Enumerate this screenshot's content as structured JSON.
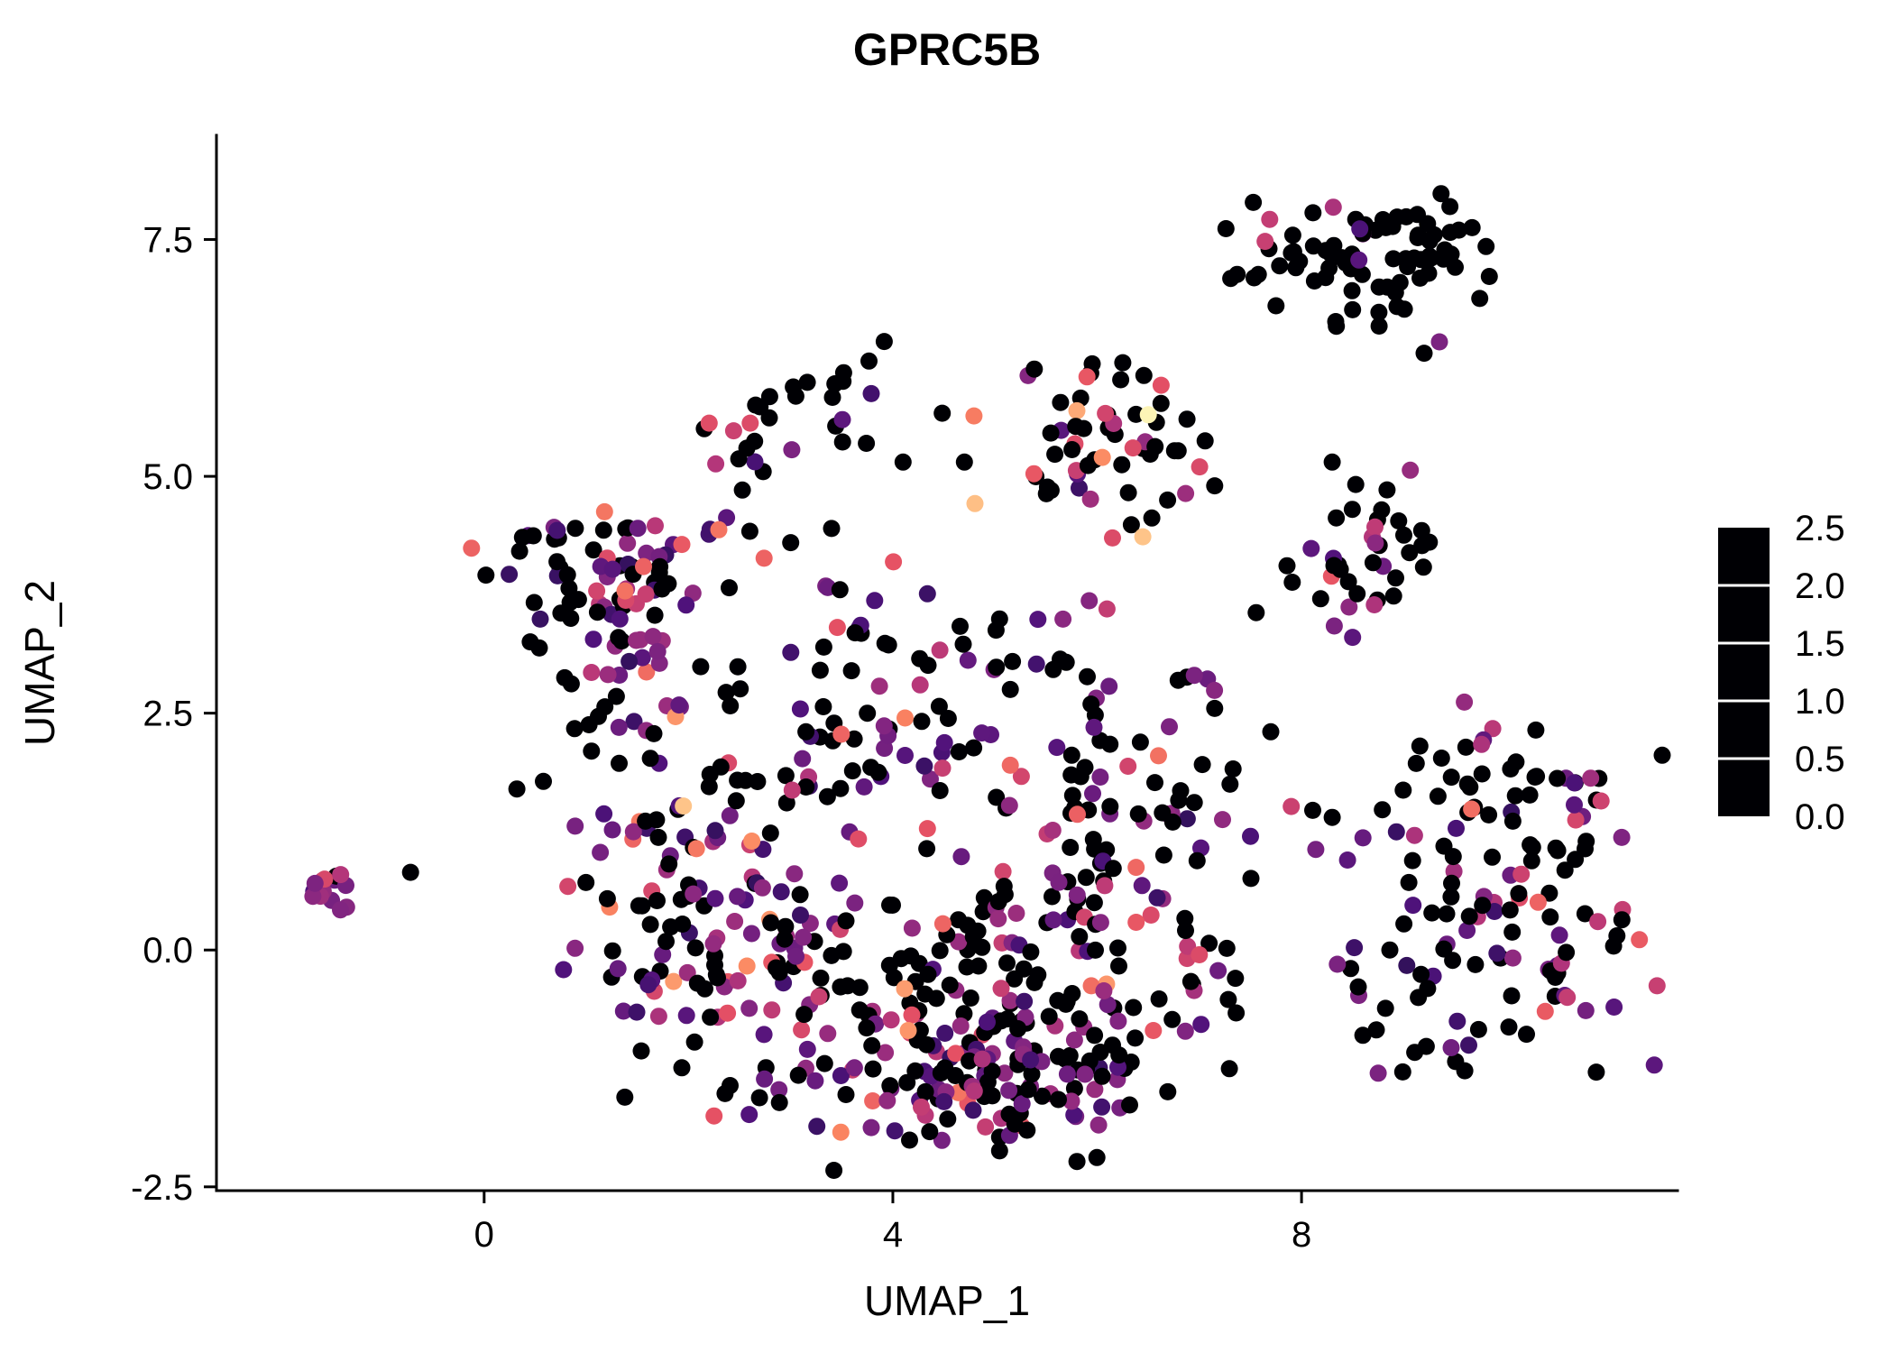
{
  "title": "GPRC5B",
  "colors": {
    "background": "#ffffff",
    "axis": "#000000",
    "text": "#000000",
    "legend_tick": "#ffffff"
  },
  "chart_data": {
    "type": "scatter",
    "title": "GPRC5B",
    "xlabel": "UMAP_1",
    "ylabel": "UMAP_2",
    "xlim": [
      -2.62,
      11.68
    ],
    "ylim": [
      -2.54,
      8.6
    ],
    "grid": "off",
    "legend_position": "right",
    "point_radius": 9.5,
    "x_ticks": [
      {
        "v": 0,
        "label": "0"
      },
      {
        "v": 4,
        "label": "4"
      },
      {
        "v": 8,
        "label": "8"
      }
    ],
    "y_ticks": [
      {
        "v": -2.5,
        "label": "-2.5"
      },
      {
        "v": 0,
        "label": "0.0"
      },
      {
        "v": 2.5,
        "label": "2.5"
      },
      {
        "v": 5,
        "label": "5.0"
      },
      {
        "v": 7.5,
        "label": "7.5"
      }
    ],
    "legend": {
      "range": [
        0,
        2.5
      ],
      "ticks": [
        {
          "v": 0,
          "label": "0.0"
        },
        {
          "v": 0.5,
          "label": "0.5"
        },
        {
          "v": 1.0,
          "label": "1.0"
        },
        {
          "v": 1.5,
          "label": "1.5"
        },
        {
          "v": 2.0,
          "label": "2.0"
        },
        {
          "v": 2.5,
          "label": "2.5"
        }
      ]
    },
    "colormap": [
      {
        "t": 0,
        "c": "#000004"
      },
      {
        "t": 0.125,
        "c": "#1c1044"
      },
      {
        "t": 0.25,
        "c": "#4f127b"
      },
      {
        "t": 0.375,
        "c": "#812581"
      },
      {
        "t": 0.5,
        "c": "#b5367a"
      },
      {
        "t": 0.625,
        "c": "#e55064"
      },
      {
        "t": 0.75,
        "c": "#fb8761"
      },
      {
        "t": 0.875,
        "c": "#fec287"
      },
      {
        "t": 1,
        "c": "#fcfdbf"
      }
    ],
    "clusters": [
      {
        "name": "top-right",
        "seed": 11,
        "n": 72,
        "cx": 8.75,
        "cy": 7.45,
        "sx": 0.62,
        "sy": 0.3,
        "values": [
          {
            "w": 0.84,
            "min": 0,
            "max": 0
          },
          {
            "w": 0.12,
            "min": 0.5,
            "max": 1.2
          },
          {
            "w": 0.04,
            "min": 1.2,
            "max": 1.6
          }
        ]
      },
      {
        "name": "top-right-lower",
        "seed": 12,
        "n": 10,
        "cx": 9.0,
        "cy": 6.9,
        "sx": 0.45,
        "sy": 0.18,
        "values": [
          {
            "w": 0.8,
            "min": 0,
            "max": 0
          },
          {
            "w": 0.2,
            "min": 0.5,
            "max": 1.1
          }
        ]
      },
      {
        "name": "top-small",
        "seed": 13,
        "n": 30,
        "cx": 2.95,
        "cy": 5.7,
        "sx": 0.42,
        "sy": 0.3,
        "values": [
          {
            "w": 0.74,
            "min": 0,
            "max": 0
          },
          {
            "w": 0.16,
            "min": 0.5,
            "max": 1.2
          },
          {
            "w": 0.1,
            "min": 1.2,
            "max": 1.6
          }
        ]
      },
      {
        "name": "top-center",
        "seed": 14,
        "n": 55,
        "cx": 5.95,
        "cy": 5.35,
        "sx": 0.55,
        "sy": 0.45,
        "values": [
          {
            "w": 0.66,
            "min": 0,
            "max": 0
          },
          {
            "w": 0.18,
            "min": 0.5,
            "max": 1.2
          },
          {
            "w": 0.11,
            "min": 1.2,
            "max": 1.8
          },
          {
            "w": 0.05,
            "min": 1.8,
            "max": 2.3
          }
        ]
      },
      {
        "name": "right-mid",
        "seed": 15,
        "n": 36,
        "cx": 8.55,
        "cy": 4.35,
        "sx": 0.5,
        "sy": 0.33,
        "values": [
          {
            "w": 0.84,
            "min": 0,
            "max": 0
          },
          {
            "w": 0.11,
            "min": 0.5,
            "max": 1.2
          },
          {
            "w": 0.05,
            "min": 1.2,
            "max": 1.6
          }
        ]
      },
      {
        "name": "left-upper",
        "seed": 16,
        "n": 60,
        "cx": 1.1,
        "cy": 4.15,
        "sx": 0.5,
        "sy": 0.33,
        "values": [
          {
            "w": 0.52,
            "min": 0,
            "max": 0
          },
          {
            "w": 0.33,
            "min": 0.45,
            "max": 1.1
          },
          {
            "w": 0.11,
            "min": 1.1,
            "max": 1.5
          },
          {
            "w": 0.04,
            "min": 1.5,
            "max": 1.8
          }
        ]
      },
      {
        "name": "left-lower",
        "seed": 26,
        "n": 42,
        "cx": 1.35,
        "cy": 3.05,
        "sx": 0.45,
        "sy": 0.42,
        "values": [
          {
            "w": 0.45,
            "min": 0,
            "max": 0
          },
          {
            "w": 0.38,
            "min": 0.45,
            "max": 1.1
          },
          {
            "w": 0.13,
            "min": 1.1,
            "max": 1.5
          },
          {
            "w": 0.04,
            "min": 1.5,
            "max": 1.8
          }
        ]
      },
      {
        "name": "far-left",
        "seed": 17,
        "n": 15,
        "cx": -1.45,
        "cy": 0.65,
        "sx": 0.22,
        "sy": 0.13,
        "values": [
          {
            "w": 0.15,
            "min": 0,
            "max": 0
          },
          {
            "w": 0.5,
            "min": 0.6,
            "max": 1.1
          },
          {
            "w": 0.35,
            "min": 1.1,
            "max": 1.6
          }
        ]
      },
      {
        "name": "central-upper",
        "seed": 18,
        "n": 85,
        "cx": 4.4,
        "cy": 2.05,
        "sx": 1.45,
        "sy": 0.5,
        "values": [
          {
            "w": 0.55,
            "min": 0,
            "max": 0
          },
          {
            "w": 0.29,
            "min": 0.45,
            "max": 1.1
          },
          {
            "w": 0.12,
            "min": 1.1,
            "max": 1.6
          },
          {
            "w": 0.04,
            "min": 1.6,
            "max": 2.0
          }
        ]
      },
      {
        "name": "central-left",
        "seed": 19,
        "n": 110,
        "cx": 2.05,
        "cy": 0.25,
        "sx": 0.6,
        "sy": 0.9,
        "values": [
          {
            "w": 0.4,
            "min": 0,
            "max": 0
          },
          {
            "w": 0.37,
            "min": 0.45,
            "max": 1.1
          },
          {
            "w": 0.16,
            "min": 1.1,
            "max": 1.6
          },
          {
            "w": 0.07,
            "min": 1.6,
            "max": 2.0
          }
        ]
      },
      {
        "name": "central-core",
        "seed": 20,
        "n": 150,
        "cx": 4.6,
        "cy": -0.35,
        "sx": 1.05,
        "sy": 0.8,
        "values": [
          {
            "w": 0.5,
            "min": 0,
            "max": 0
          },
          {
            "w": 0.33,
            "min": 0.45,
            "max": 1.1
          },
          {
            "w": 0.13,
            "min": 1.1,
            "max": 1.6
          },
          {
            "w": 0.04,
            "min": 1.6,
            "max": 2.0
          }
        ]
      },
      {
        "name": "central-bottom",
        "seed": 21,
        "n": 115,
        "cx": 5.0,
        "cy": -1.3,
        "sx": 0.85,
        "sy": 0.45,
        "values": [
          {
            "w": 0.47,
            "min": 0,
            "max": 0
          },
          {
            "w": 0.37,
            "min": 0.45,
            "max": 1.1
          },
          {
            "w": 0.13,
            "min": 1.1,
            "max": 1.6
          },
          {
            "w": 0.03,
            "min": 1.6,
            "max": 1.9
          }
        ]
      },
      {
        "name": "central-right",
        "seed": 22,
        "n": 80,
        "cx": 6.35,
        "cy": 0.6,
        "sx": 0.65,
        "sy": 0.95,
        "values": [
          {
            "w": 0.55,
            "min": 0,
            "max": 0
          },
          {
            "w": 0.3,
            "min": 0.45,
            "max": 1.1
          },
          {
            "w": 0.11,
            "min": 1.1,
            "max": 1.6
          },
          {
            "w": 0.04,
            "min": 1.6,
            "max": 1.9
          }
        ]
      },
      {
        "name": "central-top-sparse",
        "seed": 23,
        "n": 42,
        "cx": 4.6,
        "cy": 3.3,
        "sx": 1.55,
        "sy": 0.55,
        "values": [
          {
            "w": 0.62,
            "min": 0,
            "max": 0
          },
          {
            "w": 0.26,
            "min": 0.45,
            "max": 1.1
          },
          {
            "w": 0.12,
            "min": 1.1,
            "max": 1.7
          }
        ]
      },
      {
        "name": "right-lower",
        "seed": 24,
        "n": 115,
        "cx": 9.9,
        "cy": 0.45,
        "sx": 0.72,
        "sy": 0.82,
        "values": [
          {
            "w": 0.54,
            "min": 0,
            "max": 0
          },
          {
            "w": 0.33,
            "min": 0.45,
            "max": 1.1
          },
          {
            "w": 0.1,
            "min": 1.1,
            "max": 1.5
          },
          {
            "w": 0.03,
            "min": 1.5,
            "max": 1.8
          }
        ]
      },
      {
        "name": "right-lower-top",
        "seed": 25,
        "n": 20,
        "cx": 10.0,
        "cy": 2.0,
        "sx": 0.5,
        "sy": 0.25,
        "values": [
          {
            "w": 0.8,
            "min": 0,
            "max": 0
          },
          {
            "w": 0.15,
            "min": 0.5,
            "max": 1.1
          },
          {
            "w": 0.05,
            "min": 1.1,
            "max": 1.4
          }
        ]
      }
    ],
    "extra_points": [
      [
        -0.72,
        0.82,
        0
      ],
      [
        0.32,
        1.7,
        0
      ],
      [
        0.58,
        1.78,
        0
      ],
      [
        1.05,
        2.1,
        0
      ],
      [
        1.32,
        2.35,
        0.8
      ],
      [
        2.6,
        4.42,
        0
      ],
      [
        3.4,
        4.45,
        0
      ],
      [
        3.0,
        4.3,
        0
      ],
      [
        4.1,
        5.15,
        0
      ],
      [
        4.7,
        5.15,
        0
      ],
      [
        6.25,
        6.2,
        0
      ],
      [
        7.75,
        6.8,
        0
      ],
      [
        5.9,
        6.05,
        1.6
      ],
      [
        6.05,
        5.2,
        1.9
      ],
      [
        6.35,
        5.3,
        1.5
      ],
      [
        6.5,
        5.65,
        2.45
      ],
      [
        6.15,
        4.35,
        1.5
      ],
      [
        7.15,
        4.9,
        0
      ],
      [
        9.35,
        6.42,
        0.9
      ],
      [
        9.2,
        6.3,
        0
      ],
      [
        8.32,
        3.42,
        0.9
      ],
      [
        8.5,
        3.3,
        0.7
      ],
      [
        6.95,
        2.9,
        0.9
      ],
      [
        7.15,
        2.55,
        0
      ],
      [
        7.3,
        1.75,
        0
      ],
      [
        7.5,
        1.2,
        0.6
      ],
      [
        8.3,
        1.4,
        0
      ],
      [
        8.45,
        0.95,
        0.7
      ],
      [
        8.35,
        -0.15,
        0.9
      ],
      [
        8.6,
        -0.9,
        0
      ],
      [
        8.75,
        -1.3,
        0.9
      ],
      [
        1.95,
        1.52,
        2.2
      ],
      [
        2.62,
        1.15,
        1.9
      ],
      [
        4.15,
        -0.85,
        1.95
      ],
      [
        5.15,
        1.95,
        1.7
      ],
      [
        6.6,
        2.05,
        1.75
      ],
      [
        6.55,
        -0.85,
        1.6
      ],
      [
        7.0,
        -0.05,
        1.5
      ],
      [
        10.9,
        0.3,
        1.3
      ],
      [
        10.6,
        -0.5,
        1.35
      ],
      [
        10.15,
        0.8,
        1.4
      ]
    ]
  }
}
